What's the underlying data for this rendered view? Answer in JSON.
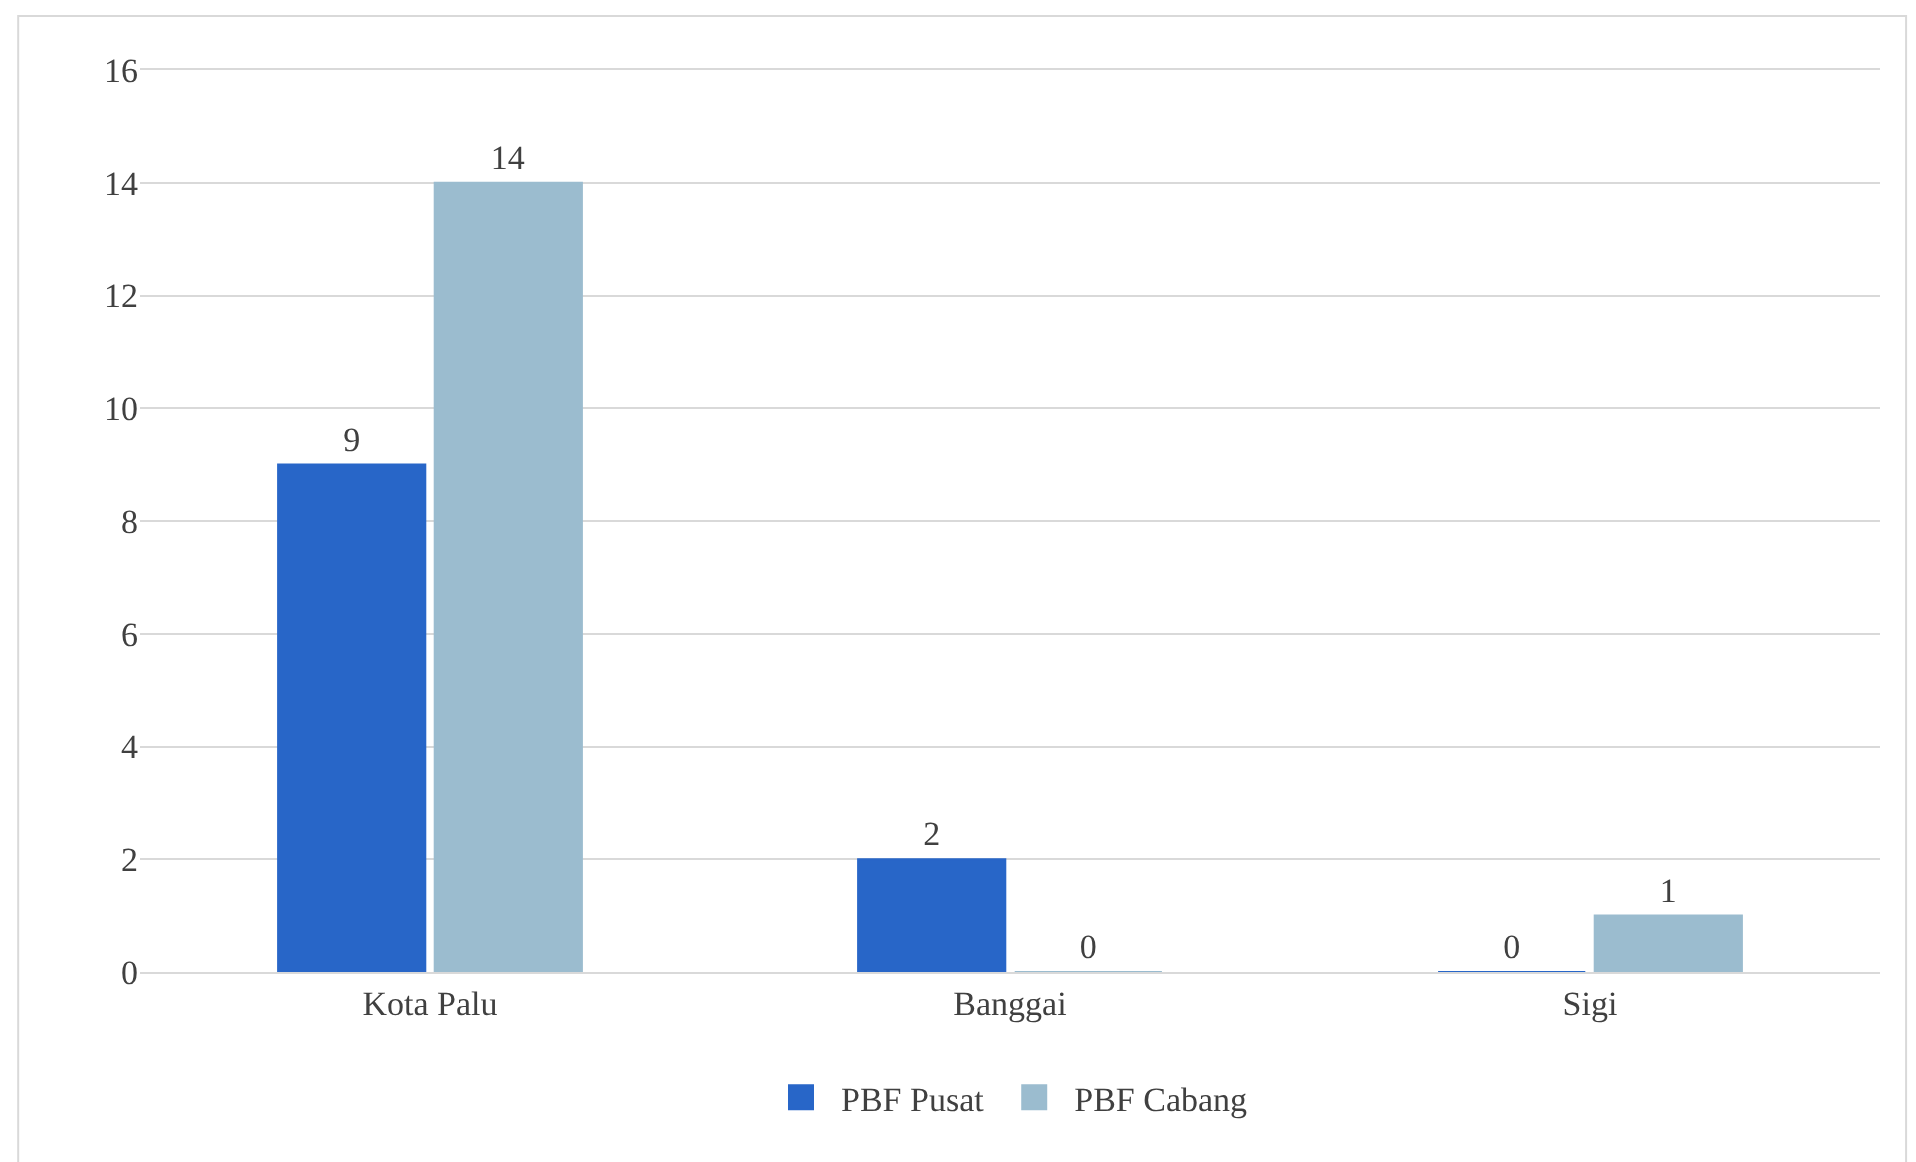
{
  "chart_data": {
    "type": "bar",
    "categories": [
      "Kota Palu",
      "Banggai",
      "Sigi"
    ],
    "series": [
      {
        "name": "PBF Pusat",
        "color": "#2866c8",
        "values": [
          9,
          2,
          0
        ]
      },
      {
        "name": "PBF Cabang",
        "color": "#9bbccf",
        "values": [
          14,
          0,
          1
        ]
      }
    ],
    "ylim": [
      0,
      16
    ],
    "yticks": [
      0,
      2,
      4,
      6,
      8,
      10,
      12,
      14,
      16
    ],
    "grid": "y",
    "legend": "bottom",
    "data_labels": true
  }
}
